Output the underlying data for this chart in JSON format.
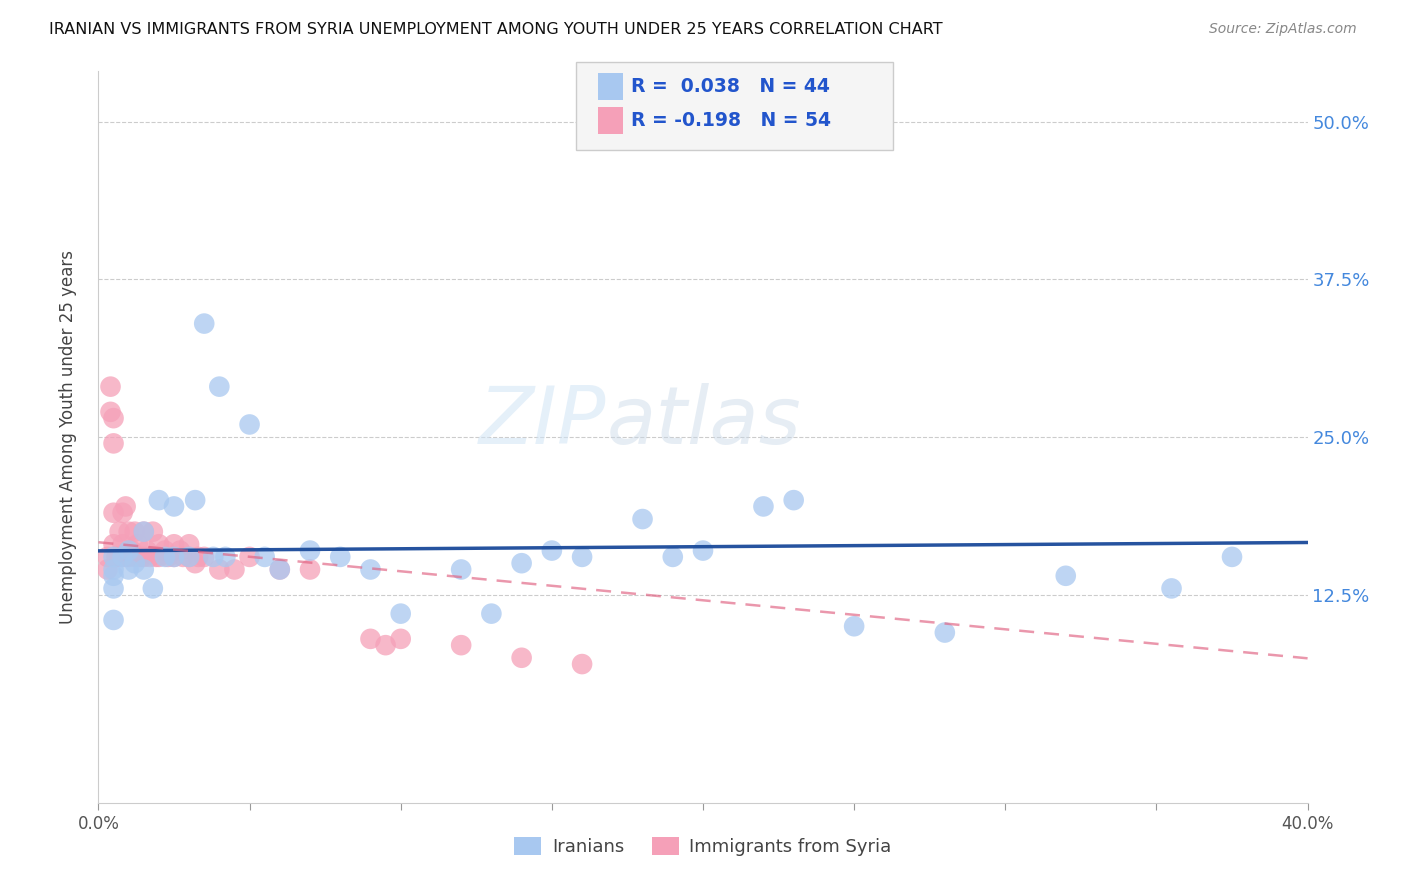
{
  "title": "IRANIAN VS IMMIGRANTS FROM SYRIA UNEMPLOYMENT AMONG YOUTH UNDER 25 YEARS CORRELATION CHART",
  "source": "Source: ZipAtlas.com",
  "ylabel": "Unemployment Among Youth under 25 years",
  "ytick_labels": [
    "12.5%",
    "25.0%",
    "37.5%",
    "50.0%"
  ],
  "ytick_values": [
    0.125,
    0.25,
    0.375,
    0.5
  ],
  "xlim": [
    0.0,
    0.4
  ],
  "ylim": [
    -0.04,
    0.54
  ],
  "iranian_color": "#a8c8f0",
  "iranian_line_color": "#1a4a9a",
  "syria_color": "#f5a0b8",
  "syria_line_color": "#e06080",
  "watermark_zip": "ZIP",
  "watermark_atlas": "atlas",
  "iranian_x": [
    0.005,
    0.005,
    0.005,
    0.005,
    0.005,
    0.008,
    0.01,
    0.01,
    0.012,
    0.015,
    0.015,
    0.018,
    0.02,
    0.022,
    0.025,
    0.025,
    0.03,
    0.032,
    0.035,
    0.038,
    0.04,
    0.042,
    0.05,
    0.055,
    0.06,
    0.07,
    0.08,
    0.09,
    0.1,
    0.12,
    0.13,
    0.14,
    0.15,
    0.16,
    0.18,
    0.19,
    0.2,
    0.22,
    0.23,
    0.25,
    0.28,
    0.32,
    0.355,
    0.375
  ],
  "iranian_y": [
    0.155,
    0.145,
    0.14,
    0.13,
    0.105,
    0.155,
    0.16,
    0.145,
    0.15,
    0.175,
    0.145,
    0.13,
    0.2,
    0.155,
    0.195,
    0.155,
    0.155,
    0.2,
    0.34,
    0.155,
    0.29,
    0.155,
    0.26,
    0.155,
    0.145,
    0.16,
    0.155,
    0.145,
    0.11,
    0.145,
    0.11,
    0.15,
    0.16,
    0.155,
    0.185,
    0.155,
    0.16,
    0.195,
    0.2,
    0.1,
    0.095,
    0.14,
    0.13,
    0.155
  ],
  "syria_x": [
    0.003,
    0.003,
    0.004,
    0.004,
    0.005,
    0.005,
    0.005,
    0.005,
    0.006,
    0.007,
    0.007,
    0.008,
    0.008,
    0.009,
    0.009,
    0.01,
    0.01,
    0.01,
    0.011,
    0.012,
    0.012,
    0.013,
    0.013,
    0.014,
    0.015,
    0.015,
    0.016,
    0.017,
    0.018,
    0.019,
    0.02,
    0.02,
    0.022,
    0.023,
    0.025,
    0.025,
    0.027,
    0.028,
    0.03,
    0.03,
    0.032,
    0.033,
    0.035,
    0.04,
    0.045,
    0.05,
    0.06,
    0.07,
    0.09,
    0.095,
    0.1,
    0.12,
    0.14,
    0.16
  ],
  "syria_y": [
    0.155,
    0.145,
    0.29,
    0.27,
    0.265,
    0.245,
    0.19,
    0.165,
    0.155,
    0.175,
    0.155,
    0.19,
    0.165,
    0.155,
    0.195,
    0.16,
    0.155,
    0.175,
    0.16,
    0.155,
    0.175,
    0.155,
    0.165,
    0.155,
    0.175,
    0.155,
    0.16,
    0.155,
    0.175,
    0.155,
    0.155,
    0.165,
    0.16,
    0.155,
    0.155,
    0.165,
    0.16,
    0.155,
    0.155,
    0.165,
    0.15,
    0.155,
    0.155,
    0.145,
    0.145,
    0.155,
    0.145,
    0.145,
    0.09,
    0.085,
    0.09,
    0.085,
    0.075,
    0.07
  ]
}
